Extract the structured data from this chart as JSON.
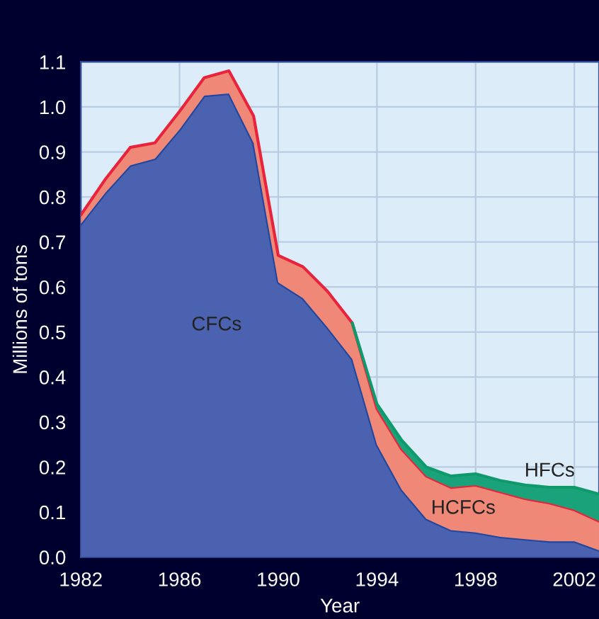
{
  "chart_data": {
    "type": "area",
    "stacked": true,
    "xlabel": "Year",
    "ylabel": "Millions of tons",
    "x": [
      1982,
      1983,
      1984,
      1985,
      1986,
      1987,
      1988,
      1989,
      1990,
      1991,
      1992,
      1993,
      1994,
      1995,
      1996,
      1997,
      1998,
      1999,
      2000,
      2001,
      2002,
      2003
    ],
    "series": [
      {
        "name": "CFCs",
        "color": "#4a62b0",
        "values": [
          0.74,
          0.81,
          0.87,
          0.885,
          0.95,
          1.025,
          1.03,
          0.92,
          0.61,
          0.575,
          0.51,
          0.44,
          0.25,
          0.15,
          0.085,
          0.06,
          0.055,
          0.045,
          0.04,
          0.035,
          0.035,
          0.015
        ]
      },
      {
        "name": "HCFCs",
        "color": "#f08878",
        "values": [
          0.02,
          0.03,
          0.04,
          0.035,
          0.04,
          0.04,
          0.05,
          0.06,
          0.06,
          0.07,
          0.08,
          0.08,
          0.08,
          0.09,
          0.095,
          0.095,
          0.105,
          0.1,
          0.09,
          0.085,
          0.07,
          0.065
        ]
      },
      {
        "name": "HFCs",
        "color": "#1aa37a",
        "values": [
          0,
          0,
          0,
          0,
          0,
          0,
          0,
          0,
          0,
          0,
          0,
          0,
          0.01,
          0.02,
          0.02,
          0.025,
          0.025,
          0.025,
          0.03,
          0.035,
          0.05,
          0.06
        ]
      }
    ],
    "xlim": [
      1982,
      2003
    ],
    "xticks": [
      1982,
      1986,
      1990,
      1994,
      1998,
      2002
    ],
    "ylim": [
      0,
      1.1
    ],
    "yticks": [
      {
        "value": 0,
        "label": "0.0"
      },
      {
        "value": 0.1,
        "label": "0.1"
      },
      {
        "value": 0.2,
        "label": "0.2"
      },
      {
        "value": 0.3,
        "label": "0.3"
      },
      {
        "value": 0.4,
        "label": "0.4"
      },
      {
        "value": 0.5,
        "label": "0.5"
      },
      {
        "value": 0.6,
        "label": "0.6"
      },
      {
        "value": 0.7,
        "label": "0.7"
      },
      {
        "value": 0.8,
        "label": "0.8"
      },
      {
        "value": 0.9,
        "label": "0.9"
      },
      {
        "value": 1.0,
        "label": "1.0"
      },
      {
        "value": 1.1,
        "label": "1.1"
      }
    ],
    "grid": true,
    "legend": false
  }
}
